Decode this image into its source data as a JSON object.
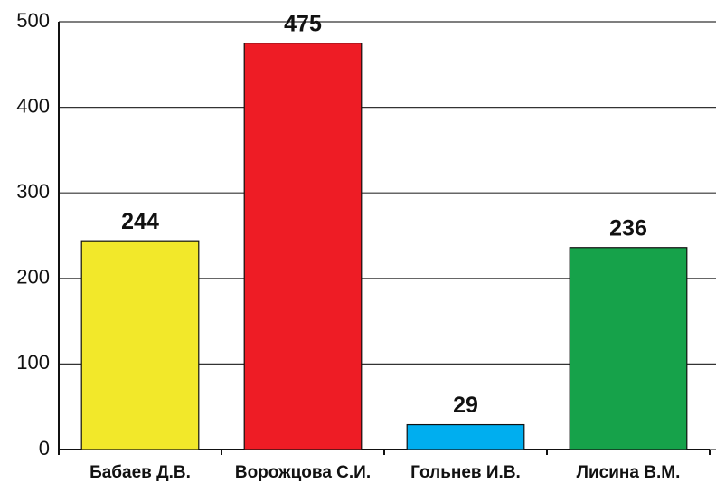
{
  "chart_data": {
    "type": "bar",
    "categories": [
      "Бабаев Д.В.",
      "Ворожцова С.И.",
      "Гольнев И.В.",
      "Лисина В.М."
    ],
    "values": [
      244,
      475,
      29,
      236
    ],
    "colors": [
      "#f2e82a",
      "#ee1c25",
      "#00aeef",
      "#16a24a"
    ],
    "ylim": [
      0,
      500
    ],
    "yticks": [
      0,
      100,
      200,
      300,
      400,
      500
    ],
    "grid": true
  }
}
